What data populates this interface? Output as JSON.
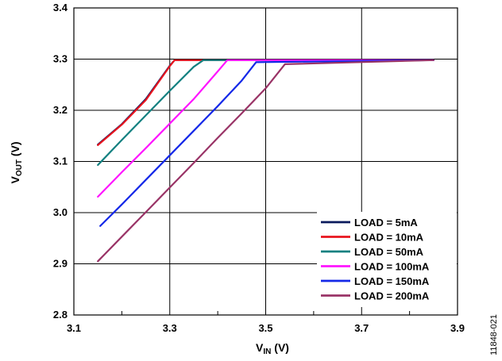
{
  "chart_data": {
    "type": "line",
    "title": "",
    "xlabel_main": "V",
    "xlabel_sub": "IN",
    "xlabel_unit": " (V)",
    "ylabel_main": "V",
    "ylabel_sub": "OUT",
    "ylabel_unit": " (V)",
    "xlim": [
      3.1,
      3.9
    ],
    "ylim": [
      2.8,
      3.4
    ],
    "x_ticks": [
      "3.1",
      "3.3",
      "3.5",
      "3.7",
      "3.9"
    ],
    "y_ticks": [
      "2.8",
      "2.9",
      "3.0",
      "3.1",
      "3.2",
      "3.3",
      "3.4"
    ],
    "x_tick_values": [
      3.1,
      3.3,
      3.5,
      3.7,
      3.9
    ],
    "y_tick_values": [
      2.8,
      2.9,
      3.0,
      3.1,
      3.2,
      3.3,
      3.4
    ],
    "x_minor_grid": [
      3.2,
      3.4,
      3.6,
      3.8
    ],
    "grid": true,
    "legend_position": "bottom-right",
    "series": [
      {
        "name": "LOAD = 5mA",
        "color": "#0a1a5c",
        "x": [
          3.15,
          3.2,
          3.25,
          3.3,
          3.31,
          3.85
        ],
        "y": [
          3.133,
          3.173,
          3.222,
          3.287,
          3.298,
          3.298
        ]
      },
      {
        "name": "LOAD = 10mA",
        "color": "#e8141e",
        "x": [
          3.15,
          3.2,
          3.25,
          3.3,
          3.31,
          3.85
        ],
        "y": [
          3.132,
          3.172,
          3.22,
          3.286,
          3.298,
          3.298
        ]
      },
      {
        "name": "LOAD = 50mA",
        "color": "#138080",
        "x": [
          3.15,
          3.2,
          3.25,
          3.3,
          3.35,
          3.37,
          3.85
        ],
        "y": [
          3.093,
          3.142,
          3.19,
          3.238,
          3.285,
          3.298,
          3.298
        ]
      },
      {
        "name": "LOAD = 100mA",
        "color": "#ff14ff",
        "x": [
          3.15,
          3.2,
          3.25,
          3.3,
          3.35,
          3.4,
          3.42,
          3.85
        ],
        "y": [
          3.031,
          3.079,
          3.126,
          3.174,
          3.222,
          3.276,
          3.298,
          3.298
        ]
      },
      {
        "name": "LOAD = 150mA",
        "color": "#1428e8",
        "x": [
          3.155,
          3.2,
          3.25,
          3.3,
          3.35,
          3.4,
          3.45,
          3.48,
          3.85
        ],
        "y": [
          2.974,
          3.016,
          3.064,
          3.112,
          3.16,
          3.208,
          3.258,
          3.294,
          3.298
        ]
      },
      {
        "name": "LOAD = 200mA",
        "color": "#993366",
        "x": [
          3.15,
          3.2,
          3.25,
          3.3,
          3.35,
          3.4,
          3.45,
          3.5,
          3.54,
          3.85
        ],
        "y": [
          2.905,
          2.953,
          3.001,
          3.049,
          3.097,
          3.146,
          3.194,
          3.243,
          3.29,
          3.298
        ]
      }
    ],
    "figure_id": "11848-021"
  }
}
